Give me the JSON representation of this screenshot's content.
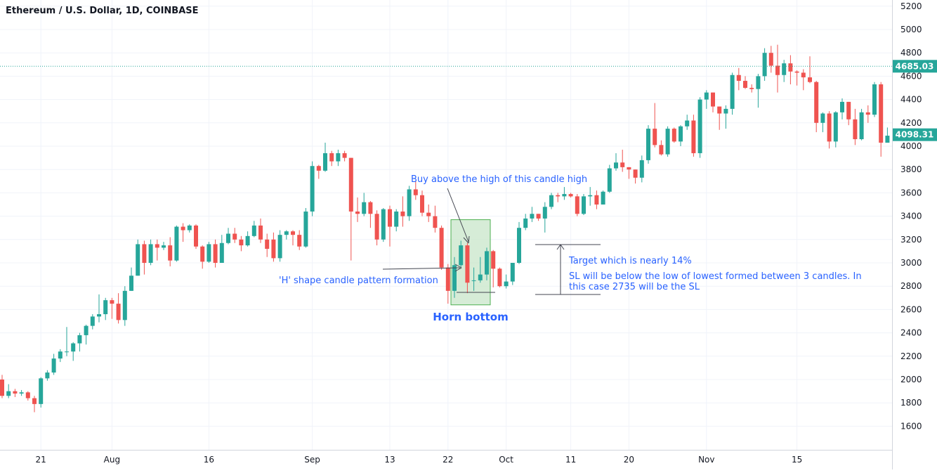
{
  "header": {
    "title": "Ethereum / U.S. Dollar, 1D, COINBASE"
  },
  "colors": {
    "up": "#26a69a",
    "down": "#ef5350",
    "annotation": "#2962ff",
    "box_fill": "#c8e6c9",
    "box_stroke": "#4caf50"
  },
  "chart_data": {
    "type": "candlestick",
    "y_axis": {
      "range": [
        1450,
        5250
      ],
      "ticks": [
        1600,
        1800,
        2000,
        2200,
        2400,
        2600,
        2800,
        3000,
        3200,
        3400,
        3600,
        3800,
        4000,
        4200,
        4400,
        4600,
        4800,
        5000,
        5200
      ]
    },
    "x_axis": {
      "tick_labels": [
        {
          "label": "21",
          "index": 6
        },
        {
          "label": "Aug",
          "index": 17
        },
        {
          "label": "16",
          "index": 32
        },
        {
          "label": "Sep",
          "index": 48
        },
        {
          "label": "13",
          "index": 60
        },
        {
          "label": "22",
          "index": 69
        },
        {
          "label": "Oct",
          "index": 78
        },
        {
          "label": "11",
          "index": 88
        },
        {
          "label": "20",
          "index": 97
        },
        {
          "label": "Nov",
          "index": 109
        },
        {
          "label": "15",
          "index": 123
        }
      ]
    },
    "price_labels": {
      "top": "4685.03",
      "last": "4098.31"
    },
    "price_levels": {
      "top": 4685.03,
      "last": 4098.31
    },
    "candles": [
      [
        0,
        2000,
        1860,
        2040,
        1840
      ],
      [
        1,
        1860,
        1900,
        1960,
        1840
      ],
      [
        2,
        1900,
        1880,
        1920,
        1850
      ],
      [
        3,
        1880,
        1890,
        1910,
        1860
      ],
      [
        4,
        1890,
        1840,
        1900,
        1820
      ],
      [
        5,
        1840,
        1790,
        1860,
        1720
      ],
      [
        6,
        1790,
        2010,
        2020,
        1760
      ],
      [
        7,
        2010,
        2060,
        2080,
        1990
      ],
      [
        8,
        2060,
        2180,
        2220,
        2040
      ],
      [
        9,
        2180,
        2240,
        2260,
        2150
      ],
      [
        10,
        2240,
        2240,
        2450,
        2200
      ],
      [
        11,
        2240,
        2310,
        2320,
        2160
      ],
      [
        12,
        2310,
        2380,
        2400,
        2240
      ],
      [
        13,
        2380,
        2460,
        2470,
        2300
      ],
      [
        14,
        2460,
        2540,
        2560,
        2430
      ],
      [
        15,
        2540,
        2560,
        2730,
        2490
      ],
      [
        16,
        2560,
        2680,
        2700,
        2510
      ],
      [
        17,
        2680,
        2650,
        2700,
        2520
      ],
      [
        18,
        2650,
        2510,
        2740,
        2480
      ],
      [
        19,
        2510,
        2760,
        2800,
        2460
      ],
      [
        20,
        2760,
        2890,
        2960,
        2760
      ],
      [
        21,
        2890,
        3160,
        3200,
        2890
      ],
      [
        22,
        3160,
        3000,
        3190,
        2900
      ],
      [
        23,
        3000,
        3160,
        3200,
        2980
      ],
      [
        24,
        3160,
        3130,
        3200,
        3020
      ],
      [
        25,
        3130,
        3150,
        3180,
        3110
      ],
      [
        26,
        3150,
        3020,
        3220,
        2970
      ],
      [
        27,
        3020,
        3310,
        3320,
        3010
      ],
      [
        28,
        3310,
        3280,
        3340,
        3180
      ],
      [
        29,
        3280,
        3320,
        3330,
        3260
      ],
      [
        30,
        3320,
        3140,
        3330,
        3120
      ],
      [
        31,
        3140,
        3010,
        3150,
        2950
      ],
      [
        32,
        3010,
        3160,
        3180,
        3000
      ],
      [
        33,
        3160,
        3000,
        3200,
        2960
      ],
      [
        34,
        3000,
        3170,
        3240,
        3130
      ],
      [
        35,
        3170,
        3250,
        3300,
        3160
      ],
      [
        36,
        3250,
        3200,
        3300,
        3170
      ],
      [
        37,
        3200,
        3150,
        3230,
        3100
      ],
      [
        38,
        3150,
        3230,
        3270,
        3140
      ],
      [
        39,
        3230,
        3320,
        3360,
        3220
      ],
      [
        40,
        3320,
        3200,
        3380,
        3170
      ],
      [
        41,
        3200,
        3120,
        3250,
        3050
      ],
      [
        42,
        3200,
        3040,
        3260,
        3010
      ],
      [
        43,
        3040,
        3240,
        3280,
        3010
      ],
      [
        44,
        3240,
        3270,
        3280,
        3200
      ],
      [
        45,
        3270,
        3240,
        3280,
        3150
      ],
      [
        46,
        3240,
        3140,
        3280,
        3110
      ],
      [
        47,
        3140,
        3440,
        3470,
        3130
      ],
      [
        48,
        3440,
        3830,
        3870,
        3400
      ],
      [
        49,
        3830,
        3790,
        3840,
        3720
      ],
      [
        50,
        3790,
        3940,
        4030,
        3780
      ],
      [
        51,
        3940,
        3870,
        3960,
        3830
      ],
      [
        52,
        3870,
        3940,
        3970,
        3830
      ],
      [
        53,
        3940,
        3900,
        3960,
        3870
      ],
      [
        54,
        3900,
        3440,
        3900,
        3020
      ],
      [
        55,
        3440,
        3420,
        3560,
        3350
      ],
      [
        56,
        3420,
        3520,
        3600,
        3400
      ],
      [
        57,
        3520,
        3420,
        3530,
        3300
      ],
      [
        58,
        3420,
        3200,
        3450,
        3150
      ],
      [
        59,
        3200,
        3460,
        3470,
        3180
      ],
      [
        60,
        3460,
        3310,
        3490,
        3140
      ],
      [
        61,
        3310,
        3440,
        3460,
        3270
      ],
      [
        62,
        3440,
        3400,
        3570,
        3310
      ],
      [
        63,
        3400,
        3630,
        3660,
        3360
      ],
      [
        64,
        3630,
        3580,
        3700,
        3540
      ],
      [
        65,
        3580,
        3430,
        3620,
        3400
      ],
      [
        66,
        3430,
        3400,
        3500,
        3350
      ],
      [
        67,
        3400,
        3300,
        3490,
        3260
      ],
      [
        68,
        3300,
        2960,
        3320,
        2940
      ],
      [
        69,
        2960,
        2760,
        2990,
        2650
      ],
      [
        70,
        2760,
        2980,
        3050,
        2700
      ],
      [
        71,
        2980,
        3150,
        3190,
        2950
      ],
      [
        72,
        3150,
        2830,
        3170,
        2740
      ],
      [
        73,
        2850,
        2850,
        2960,
        2760
      ],
      [
        74,
        2850,
        2900,
        3050,
        2830
      ],
      [
        75,
        2900,
        3100,
        3130,
        2850
      ],
      [
        76,
        3100,
        2950,
        3110,
        2790
      ],
      [
        77,
        2950,
        2800,
        2960,
        2790
      ],
      [
        78,
        2800,
        2840,
        2900,
        2780
      ],
      [
        79,
        2840,
        3000,
        3000,
        2810
      ],
      [
        80,
        3000,
        3300,
        3350,
        2990
      ],
      [
        81,
        3300,
        3380,
        3420,
        3280
      ],
      [
        82,
        3380,
        3420,
        3480,
        3350
      ],
      [
        83,
        3420,
        3380,
        3420,
        3360
      ],
      [
        84,
        3380,
        3480,
        3520,
        3260
      ],
      [
        85,
        3480,
        3580,
        3600,
        3460
      ],
      [
        86,
        3580,
        3570,
        3600,
        3520
      ],
      [
        87,
        3570,
        3590,
        3650,
        3540
      ],
      [
        88,
        3590,
        3570,
        3600,
        3560
      ],
      [
        89,
        3570,
        3420,
        3590,
        3400
      ],
      [
        90,
        3420,
        3570,
        3590,
        3410
      ],
      [
        91,
        3570,
        3580,
        3650,
        3490
      ],
      [
        92,
        3580,
        3500,
        3620,
        3460
      ],
      [
        93,
        3500,
        3610,
        3620,
        3500
      ],
      [
        94,
        3610,
        3810,
        3840,
        3600
      ],
      [
        95,
        3810,
        3860,
        3940,
        3790
      ],
      [
        96,
        3860,
        3820,
        3970,
        3780
      ],
      [
        97,
        3820,
        3800,
        3820,
        3720
      ],
      [
        98,
        3800,
        3730,
        3800,
        3680
      ],
      [
        99,
        3730,
        3880,
        3920,
        3690
      ],
      [
        100,
        3880,
        4150,
        4180,
        3850
      ],
      [
        101,
        4150,
        4010,
        4370,
        3990
      ],
      [
        102,
        4010,
        3930,
        4050,
        3920
      ],
      [
        103,
        3930,
        4150,
        4170,
        3910
      ],
      [
        104,
        4150,
        4040,
        4160,
        4030
      ],
      [
        105,
        4040,
        4170,
        4180,
        4000
      ],
      [
        106,
        4170,
        4220,
        4270,
        4140
      ],
      [
        107,
        4220,
        3940,
        4270,
        3910
      ],
      [
        108,
        3940,
        4400,
        4420,
        3900
      ],
      [
        109,
        4400,
        4460,
        4480,
        4320
      ],
      [
        110,
        4460,
        4340,
        4460,
        4290
      ],
      [
        111,
        4340,
        4280,
        4340,
        4140
      ],
      [
        112,
        4280,
        4320,
        4350,
        4150
      ],
      [
        113,
        4320,
        4610,
        4630,
        4270
      ],
      [
        114,
        4610,
        4560,
        4670,
        4480
      ],
      [
        115,
        4560,
        4500,
        4600,
        4490
      ],
      [
        116,
        4500,
        4490,
        4530,
        4460
      ],
      [
        117,
        4490,
        4600,
        4620,
        4330
      ],
      [
        118,
        4600,
        4800,
        4840,
        4560
      ],
      [
        119,
        4800,
        4690,
        4860,
        4630
      ],
      [
        120,
        4690,
        4610,
        4870,
        4460
      ],
      [
        121,
        4610,
        4710,
        4740,
        4550
      ],
      [
        122,
        4710,
        4640,
        4780,
        4530
      ],
      [
        123,
        4640,
        4630,
        4650,
        4520
      ],
      [
        124,
        4630,
        4590,
        4660,
        4480
      ],
      [
        125,
        4590,
        4550,
        4770,
        4540
      ],
      [
        126,
        4550,
        4200,
        4560,
        4120
      ],
      [
        127,
        4200,
        4280,
        4290,
        4120
      ],
      [
        128,
        4280,
        4040,
        4300,
        3980
      ],
      [
        129,
        4040,
        4290,
        4300,
        3990
      ],
      [
        130,
        4290,
        4380,
        4410,
        4230
      ],
      [
        131,
        4380,
        4230,
        4380,
        4180
      ],
      [
        132,
        4230,
        4060,
        4320,
        4010
      ],
      [
        133,
        4060,
        4290,
        4320,
        4050
      ],
      [
        134,
        4290,
        4270,
        4350,
        4200
      ],
      [
        135,
        4270,
        4530,
        4550,
        4250
      ],
      [
        136,
        4530,
        4030,
        4550,
        3910
      ],
      [
        137,
        4030,
        4090,
        4160,
        4030
      ]
    ],
    "annotations": {
      "buy": "Buy above the high of this candle high",
      "h_shape": "'H' shape candle pattern formation",
      "target": "Target which is nearly 14%",
      "sl_1": "SL will be below the low of lowest formed between 3 candles. In",
      "sl_2": "this case 2735 will be the SL",
      "pattern": "Horn bottom"
    }
  }
}
